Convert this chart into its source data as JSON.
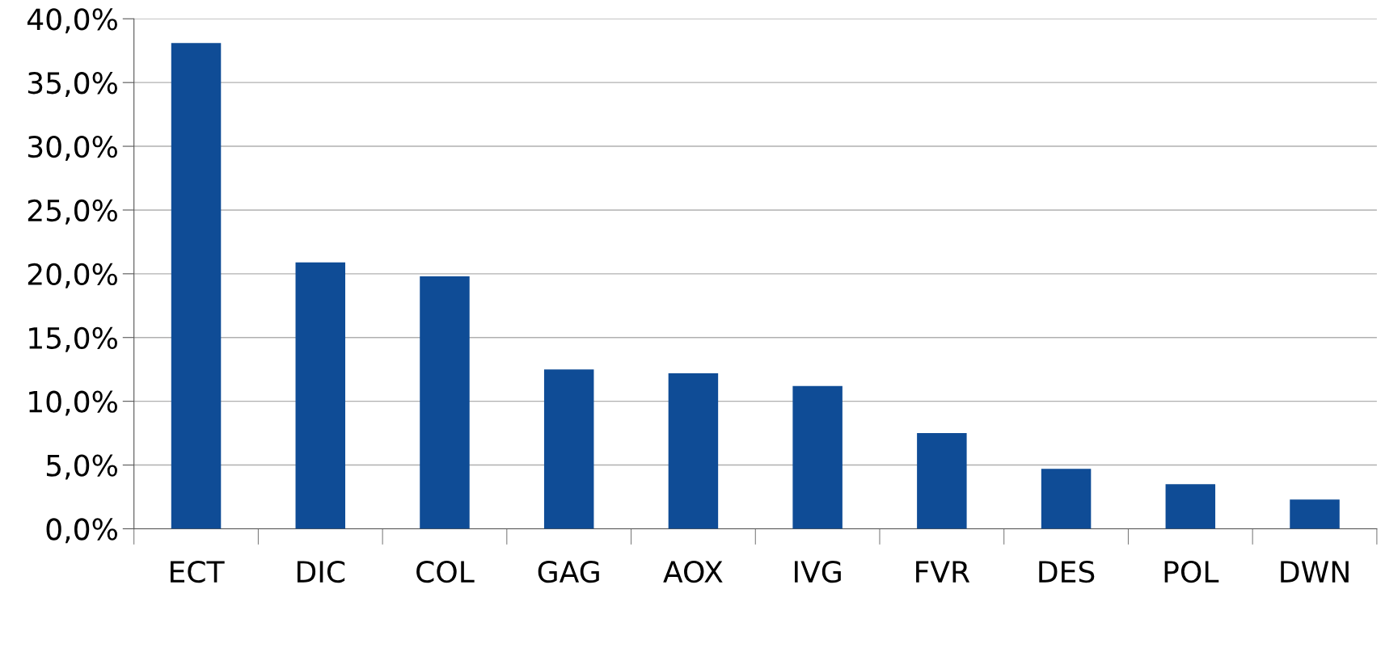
{
  "chart_data": {
    "type": "bar",
    "categories": [
      "ECT",
      "DIC",
      "COL",
      "GAG",
      "AOX",
      "IVG",
      "FVR",
      "DES",
      "POL",
      "DWN"
    ],
    "values": [
      38.1,
      20.9,
      19.8,
      12.5,
      12.2,
      11.2,
      7.5,
      4.7,
      3.5,
      2.3
    ],
    "color": "#0f4c96",
    "ylim": [
      0,
      40
    ],
    "yticks": [
      {
        "value": 0,
        "label": "0,0%"
      },
      {
        "value": 5,
        "label": "5,0%"
      },
      {
        "value": 10,
        "label": "10,0%"
      },
      {
        "value": 15,
        "label": "15,0%"
      },
      {
        "value": 20,
        "label": "20,0%"
      },
      {
        "value": 25,
        "label": "25,0%"
      },
      {
        "value": 30,
        "label": "30,0%"
      },
      {
        "value": 35,
        "label": "35,0%"
      },
      {
        "value": 40,
        "label": "40,0%"
      }
    ],
    "grid": "y",
    "legend": false
  }
}
